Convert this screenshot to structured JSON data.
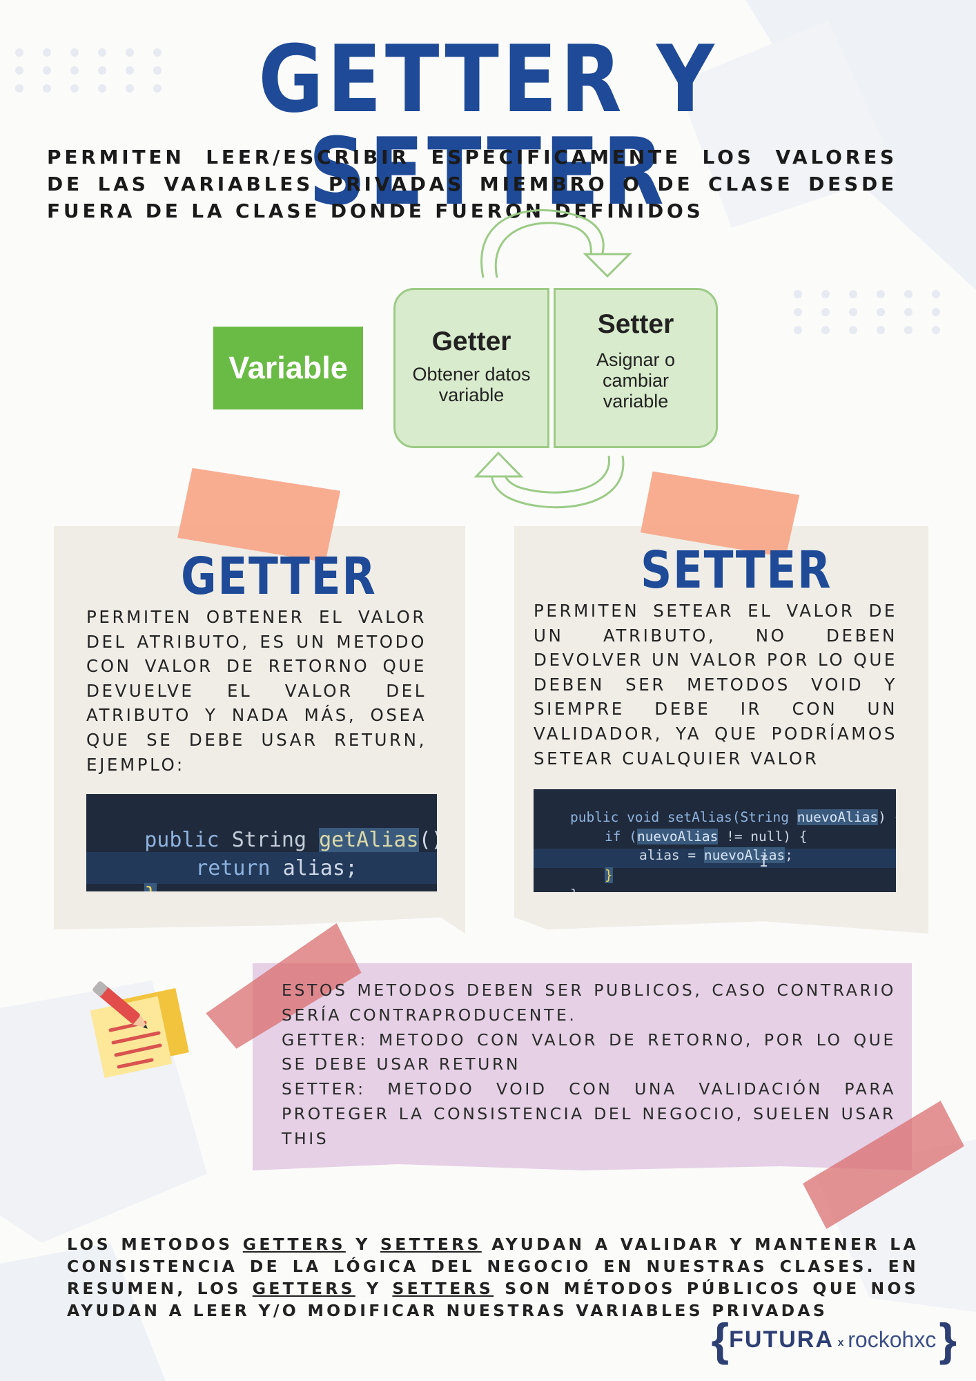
{
  "header": {
    "title": "GETTER Y SETTER",
    "intro": "PERMITEN LEER/ESCRIBIR ESPECIFICAMENTE LOS VALORES DE LAS VARIABLES PRIVADAS MIEMBRO O DE CLASE DESDE FUERA DE LA CLASE DONDE FUERON DEFINIDOS"
  },
  "diagram": {
    "variable": "Variable",
    "getter_title": "Getter",
    "getter_desc_1": "Obtener datos",
    "getter_desc_2": "variable",
    "setter_title": "Setter",
    "setter_desc_1": "Asignar o",
    "setter_desc_2": "cambiar",
    "setter_desc_3": "variable",
    "colors": {
      "variable": "#6abb45",
      "box_fill": "#d8ebcc",
      "box_border": "#9ccb86"
    }
  },
  "getter_card": {
    "title": "GETTER",
    "text": "PERMITEN OBTENER EL VALOR DEL ATRIBUTO, ES UN METODO CON VALOR DE RETORNO QUE DEVUELVE EL VALOR DEL ATRIBUTO Y NADA MÁS, OSEA QUE SE DEBE USAR RETURN, EJEMPLO:",
    "code": {
      "l1_kw": "public",
      "l1_type": "String",
      "l1_fn": "getAlias",
      "l1_rest": "()",
      "l1_brace": "{",
      "l2_kw": "return",
      "l2_rest": "alias;",
      "l3_brace": "}"
    }
  },
  "setter_card": {
    "title": "SETTER",
    "text": "PERMITEN SETEAR EL VALOR DE UN ATRIBUTO, NO DEBEN DEVOLVER UN VALOR POR LO QUE DEBEN SER METODOS VOID Y SIEMPRE DEBE IR CON UN VALIDADOR, YA QUE PODRÍAMOS SETEAR CUALQUIER VALOR",
    "code": {
      "l1_a": "public void setAlias(String ",
      "l1_param": "nuevoAlias",
      "l1_b": ") {",
      "l2_a": "if (",
      "l2_param": "nuevoAlias",
      "l2_b": " != null) {",
      "l3_a": "alias = ",
      "l3_param": "nuevoAlias",
      "l3_b": ";",
      "l4": "}",
      "l5": "}"
    }
  },
  "note": {
    "p1": "ESTOS METODOS DEBEN SER PUBLICOS, CASO CONTRARIO SERÍA CONTRAPRODUCENTE.",
    "p2": "GETTER: METODO CON VALOR DE RETORNO, POR LO QUE SE DEBE USAR RETURN",
    "p3": "SETTER: METODO VOID CON UNA VALIDACIÓN PARA PROTEGER LA CONSISTENCIA DEL NEGOCIO, SUELEN USAR THIS",
    "icon": "sticky-note-pencil-icon"
  },
  "summary": {
    "s1": "LOS METODOS ",
    "u1": "GETTERS",
    "s2": " Y ",
    "u2": "SETTERS",
    "s3": " AYUDAN A VALIDAR Y MANTENER LA CONSISTENCIA DE LA LÓGICA DEL NEGOCIO EN NUESTRAS CLASES. EN RESUMEN, LOS ",
    "u3": "GETTERS",
    "s4": " Y ",
    "u4": "SETTERS",
    "s5": " SON MÉTODOS PÚBLICOS QUE NOS AYUDAN A LEER Y/O MODIFICAR NUESTRAS VARIABLES PRIVADAS"
  },
  "brand": {
    "brace_open": "{",
    "name": "FUTURA",
    "x": "x",
    "partner": "rockohxc",
    "brace_close": "}"
  },
  "colors": {
    "title_blue": "#1e4a97",
    "note_purple": "#e5d0e5",
    "tape_peach": "#f7a789",
    "tape_red": "#d96b6b"
  }
}
